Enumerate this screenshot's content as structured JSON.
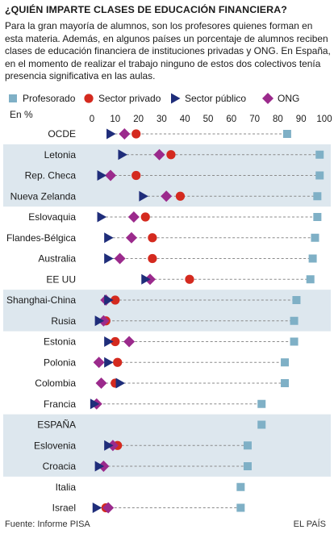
{
  "header": {
    "title": "¿QUIÉN IMPARTE CLASES DE EDUCACIÓN FINANCIERA?",
    "intro": "Para la gran mayoría de alumnos, son los profesores quienes forman en esta materia. Además, en algunos países un porcentaje de alumnos reciben clases de educación financiera de instituciones privadas y ONG. En España, en el momento de realizar el trabajo ninguno de estos dos colectivos tenía presencia significativa en las aulas."
  },
  "colors": {
    "profesorado": "#7fb0c6",
    "sector_privado": "#d42a1f",
    "sector_publico": "#1f2d7a",
    "ong": "#9b2a8c",
    "band": "#dde7ee",
    "dash": "#8a8a8a"
  },
  "chart_data": {
    "type": "scatter",
    "unit_label": "En %",
    "xlim": [
      0,
      100
    ],
    "x_ticks": [
      0,
      10,
      20,
      30,
      40,
      50,
      60,
      70,
      80,
      90,
      100
    ],
    "legend": {
      "position": "top",
      "entries": [
        {
          "key": "profesorado",
          "label": "Profesorado",
          "shape": "square"
        },
        {
          "key": "sector_privado",
          "label": "Sector privado",
          "shape": "circle"
        },
        {
          "key": "sector_publico",
          "label": "Sector público",
          "shape": "triangle"
        },
        {
          "key": "ong",
          "label": "ONG",
          "shape": "diamond"
        }
      ]
    },
    "shaded_groups": [
      [
        1,
        3
      ],
      [
        8,
        9
      ],
      [
        14,
        16
      ]
    ],
    "rows": [
      {
        "name": "OCDE",
        "profesorado": 84,
        "sector_privado": 19,
        "sector_publico": 8,
        "ong": 14
      },
      {
        "name": "Letonia",
        "profesorado": 98,
        "sector_privado": 34,
        "sector_publico": 13,
        "ong": 29
      },
      {
        "name": "Rep. Checa",
        "profesorado": 98,
        "sector_privado": 19,
        "sector_publico": 4,
        "ong": 8
      },
      {
        "name": "Nueva Zelanda",
        "profesorado": 97,
        "sector_privado": 38,
        "sector_publico": 22,
        "ong": 32
      },
      {
        "name": "Eslovaquia",
        "profesorado": 97,
        "sector_privado": 23,
        "sector_publico": 4,
        "ong": 18
      },
      {
        "name": "Flandes-Bélgica",
        "profesorado": 96,
        "sector_privado": 26,
        "sector_publico": 7,
        "ong": 17
      },
      {
        "name": "Australia",
        "profesorado": 95,
        "sector_privado": 26,
        "sector_publico": 7,
        "ong": 12
      },
      {
        "name": "EE UU",
        "profesorado": 94,
        "sector_privado": 42,
        "sector_publico": 23,
        "ong": 25
      },
      {
        "name": "Shanghai-China",
        "profesorado": 88,
        "sector_privado": 10,
        "sector_publico": 7,
        "ong": 6
      },
      {
        "name": "Rusia",
        "profesorado": 87,
        "sector_privado": 6,
        "sector_publico": 3,
        "ong": 5
      },
      {
        "name": "Estonia",
        "profesorado": 87,
        "sector_privado": 10,
        "sector_publico": 7,
        "ong": 16
      },
      {
        "name": "Polonia",
        "profesorado": 83,
        "sector_privado": 11,
        "sector_publico": 7,
        "ong": 3
      },
      {
        "name": "Colombia",
        "profesorado": 83,
        "sector_privado": 10,
        "sector_publico": 12,
        "ong": 4
      },
      {
        "name": "Francia",
        "profesorado": 73,
        "sector_privado": null,
        "sector_publico": 1,
        "ong": 2
      },
      {
        "name": "ESPAÑA",
        "profesorado": 73,
        "sector_privado": null,
        "sector_publico": null,
        "ong": null
      },
      {
        "name": "Eslovenia",
        "profesorado": 67,
        "sector_privado": 11,
        "sector_publico": 7,
        "ong": 9
      },
      {
        "name": "Croacia",
        "profesorado": 67,
        "sector_privado": null,
        "sector_publico": 3,
        "ong": 5
      },
      {
        "name": "Italia",
        "profesorado": 64,
        "sector_privado": null,
        "sector_publico": null,
        "ong": null
      },
      {
        "name": "Israel",
        "profesorado": 64,
        "sector_privado": 6,
        "sector_publico": 2,
        "ong": 7
      }
    ]
  },
  "footer": {
    "source": "Fuente: Informe PISA",
    "credit": "EL PAÍS"
  }
}
